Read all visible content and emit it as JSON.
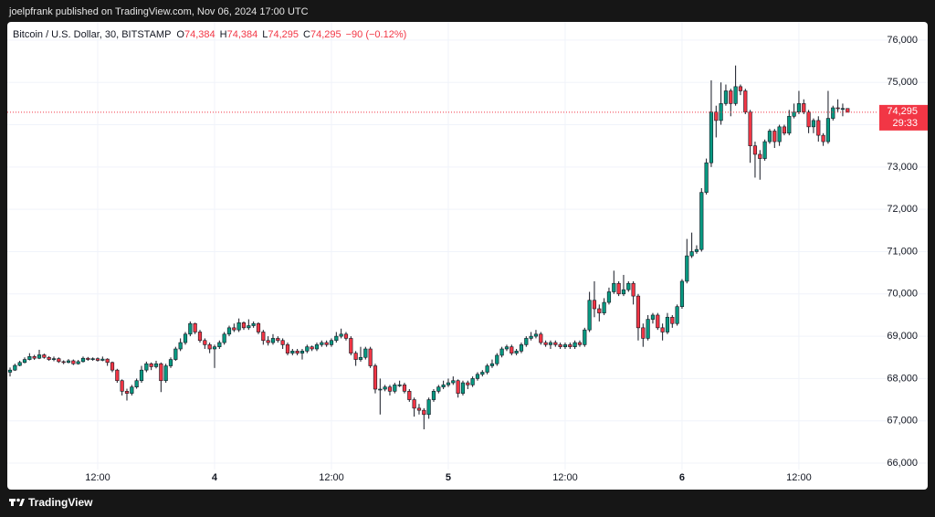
{
  "header": "joelpfrank published on TradingView.com, Nov 06, 2024 17:00 UTC",
  "footer": "TradingView",
  "chart_data": {
    "type": "candlestick",
    "title": "Bitcoin / U.S. Dollar, 30, BITSTAMP",
    "legend": [
      {
        "label": "O",
        "value": "74,384"
      },
      {
        "label": "H",
        "value": "74,384"
      },
      {
        "label": "L",
        "value": "74,295"
      },
      {
        "label": "C",
        "value": "74,295"
      }
    ],
    "change": "−90 (−0.12%)",
    "last_price_label": "74,295",
    "countdown": "29:33",
    "up_color": "#089981",
    "down_color": "#f23645",
    "grid": true,
    "ylim": [
      65850,
      76430
    ],
    "yticks": [
      {
        "value": 66000,
        "label": "66,000"
      },
      {
        "value": 67000,
        "label": "67,000"
      },
      {
        "value": 68000,
        "label": "68,000"
      },
      {
        "value": 69000,
        "label": "69,000"
      },
      {
        "value": 70000,
        "label": "70,000"
      },
      {
        "value": 71000,
        "label": "71,000"
      },
      {
        "value": 72000,
        "label": "72,000"
      },
      {
        "value": 73000,
        "label": "73,000"
      },
      {
        "value": 74000,
        "label": "74,000"
      },
      {
        "value": 75000,
        "label": "75,000"
      },
      {
        "value": 76000,
        "label": "76,000"
      }
    ],
    "categories": [
      null,
      null,
      null,
      null,
      null,
      null,
      null,
      null,
      null,
      null,
      null,
      null,
      null,
      null,
      null,
      null,
      null,
      null,
      "12:00",
      null,
      null,
      null,
      null,
      null,
      null,
      null,
      null,
      null,
      null,
      null,
      null,
      null,
      null,
      null,
      null,
      null,
      null,
      null,
      null,
      null,
      null,
      null,
      "4",
      null,
      null,
      null,
      null,
      null,
      null,
      null,
      null,
      null,
      null,
      null,
      null,
      null,
      null,
      null,
      null,
      null,
      null,
      null,
      null,
      null,
      null,
      null,
      "12:00",
      null,
      null,
      null,
      null,
      null,
      null,
      null,
      null,
      null,
      null,
      null,
      null,
      null,
      null,
      null,
      null,
      null,
      null,
      null,
      null,
      null,
      null,
      null,
      "5",
      null,
      null,
      null,
      null,
      null,
      null,
      null,
      null,
      null,
      null,
      null,
      null,
      null,
      null,
      null,
      null,
      null,
      null,
      null,
      null,
      null,
      null,
      null,
      "12:00",
      null,
      null,
      null,
      null,
      null,
      null,
      null,
      null,
      null,
      null,
      null,
      null,
      null,
      null,
      null,
      null,
      null,
      null,
      null,
      null,
      null,
      null,
      null,
      "6",
      null,
      null,
      null,
      null,
      null,
      null,
      null,
      null,
      null,
      null,
      null,
      null,
      null,
      null,
      null,
      null,
      null,
      null,
      null,
      null,
      null,
      null,
      null,
      "12:00",
      null,
      null,
      null,
      null,
      null,
      null,
      null,
      null,
      null,
      null
    ],
    "open": [
      68150,
      68200,
      68310,
      68380,
      68450,
      68520,
      68480,
      68560,
      68500,
      68450,
      68470,
      68400,
      68380,
      68420,
      68350,
      68400,
      68480,
      68450,
      68470,
      68430,
      68460,
      68380,
      68200,
      67950,
      67700,
      67650,
      67800,
      67950,
      68200,
      68350,
      68280,
      68350,
      67950,
      68300,
      68450,
      68700,
      68850,
      69050,
      69300,
      69100,
      68900,
      68800,
      68700,
      68750,
      68850,
      69050,
      69200,
      69150,
      69320,
      69200,
      69250,
      69300,
      69100,
      68900,
      68850,
      68950,
      68900,
      68800,
      68600,
      68650,
      68600,
      68650,
      68750,
      68700,
      68800,
      68850,
      68800,
      68900,
      69000,
      69050,
      68950,
      68600,
      68450,
      68500,
      68700,
      68300,
      67750,
      67750,
      67800,
      67700,
      67850,
      67850,
      67700,
      67500,
      67300,
      67250,
      67150,
      67500,
      67700,
      67800,
      67850,
      67900,
      67950,
      67650,
      67900,
      67850,
      68000,
      68100,
      68150,
      68300,
      68350,
      68550,
      68700,
      68750,
      68600,
      68650,
      68800,
      68950,
      69000,
      69050,
      68850,
      68800,
      68850,
      68800,
      68750,
      68800,
      68750,
      68850,
      68800,
      69150,
      69850,
      69650,
      69550,
      69800,
      70050,
      70250,
      70000,
      70100,
      70250,
      69950,
      69200,
      68950,
      69400,
      69500,
      69200,
      69100,
      69450,
      69300,
      69700,
      70300,
      70900,
      71000,
      71050,
      72400,
      73100,
      74300,
      74100,
      74500,
      74800,
      74500,
      74900,
      74800,
      74300,
      73500,
      73300,
      73200,
      73600,
      73850,
      73600,
      73950,
      73800,
      74200,
      74300,
      74500,
      74300,
      73950,
      74100,
      73750,
      73600,
      74150,
      74400,
      74380,
      74384
    ],
    "high": [
      68260,
      68350,
      68420,
      68500,
      68600,
      68560,
      68680,
      68590,
      68530,
      68520,
      68500,
      68430,
      68460,
      68450,
      68440,
      68520,
      68510,
      68500,
      68500,
      68520,
      68480,
      68400,
      68230,
      67980,
      67760,
      67850,
      68000,
      68300,
      68400,
      68380,
      68420,
      68380,
      68350,
      68500,
      68750,
      68950,
      69100,
      69350,
      69320,
      69150,
      68950,
      68850,
      68800,
      68900,
      69100,
      69250,
      69300,
      69420,
      69350,
      69400,
      69350,
      69330,
      69150,
      69000,
      69050,
      69000,
      68950,
      68850,
      68700,
      68700,
      68700,
      68800,
      68780,
      68850,
      68900,
      68900,
      68950,
      69100,
      69180,
      69100,
      69000,
      68650,
      68750,
      68750,
      68750,
      68350,
      68000,
      67850,
      67850,
      67900,
      67950,
      67900,
      67750,
      67550,
      67400,
      67300,
      67550,
      67750,
      67850,
      67950,
      68000,
      68050,
      67980,
      67950,
      67950,
      68050,
      68150,
      68200,
      68350,
      68450,
      68600,
      68750,
      68800,
      68800,
      68700,
      68850,
      69000,
      69100,
      69150,
      69100,
      68900,
      68900,
      68900,
      68850,
      68850,
      68850,
      68900,
      68900,
      69200,
      70050,
      70300,
      69750,
      69900,
      70150,
      70550,
      70300,
      70450,
      70300,
      70300,
      70000,
      69300,
      69500,
      69550,
      69550,
      69300,
      69550,
      69500,
      69750,
      70350,
      71300,
      71450,
      71150,
      72500,
      73200,
      75050,
      74450,
      75000,
      74950,
      74850,
      75400,
      74950,
      74850,
      74350,
      73600,
      73400,
      73650,
      73900,
      73900,
      74000,
      74000,
      74350,
      74500,
      74800,
      74600,
      74350,
      74150,
      74200,
      73800,
      74800,
      74450,
      74600,
      74500,
      74384
    ],
    "low": [
      68050,
      68180,
      68290,
      68360,
      68430,
      68440,
      68460,
      68470,
      68420,
      68410,
      68370,
      68340,
      68360,
      68320,
      68330,
      68380,
      68420,
      68420,
      68400,
      68410,
      68300,
      68150,
      67900,
      67600,
      67480,
      67600,
      67760,
      67900,
      68150,
      68200,
      68240,
      67680,
      67900,
      68250,
      68420,
      68650,
      68800,
      69000,
      69050,
      68850,
      68700,
      68600,
      68250,
      68700,
      68800,
      69000,
      69100,
      69100,
      69150,
      69150,
      69200,
      69050,
      68800,
      68780,
      68800,
      68850,
      68700,
      68550,
      68550,
      68550,
      68450,
      68600,
      68650,
      68650,
      68750,
      68750,
      68750,
      68850,
      68950,
      68900,
      68550,
      68300,
      68400,
      68450,
      68250,
      67650,
      67150,
      67700,
      67600,
      67650,
      67800,
      67650,
      67450,
      67100,
      67150,
      66800,
      67050,
      67450,
      67650,
      67750,
      67800,
      67850,
      67550,
      67600,
      67750,
      67800,
      67950,
      68050,
      68100,
      68250,
      68300,
      68500,
      68650,
      68550,
      68550,
      68600,
      68750,
      68900,
      68950,
      68800,
      68750,
      68700,
      68750,
      68700,
      68700,
      68700,
      68700,
      68750,
      68750,
      69100,
      69450,
      69350,
      69500,
      69750,
      70000,
      69950,
      69950,
      70050,
      69750,
      68900,
      68750,
      68900,
      69300,
      69150,
      68900,
      69050,
      69200,
      69250,
      69650,
      70250,
      70850,
      70950,
      71000,
      72350,
      73000,
      73700,
      74000,
      74450,
      74200,
      74450,
      74700,
      74250,
      73100,
      72750,
      72700,
      73150,
      73550,
      73450,
      73500,
      73750,
      73750,
      74150,
      74250,
      74250,
      73800,
      73800,
      73600,
      73500,
      73550,
      74100,
      74300,
      74200,
      74295
    ],
    "close": [
      68200,
      68310,
      68380,
      68450,
      68520,
      68480,
      68560,
      68500,
      68450,
      68470,
      68400,
      68380,
      68420,
      68350,
      68400,
      68480,
      68450,
      68470,
      68430,
      68460,
      68380,
      68200,
      67950,
      67700,
      67650,
      67800,
      67950,
      68200,
      68350,
      68280,
      68350,
      67950,
      68300,
      68450,
      68700,
      68850,
      69050,
      69300,
      69100,
      68900,
      68800,
      68700,
      68750,
      68850,
      69050,
      69200,
      69150,
      69320,
      69200,
      69250,
      69300,
      69100,
      68900,
      68850,
      68950,
      68900,
      68800,
      68600,
      68650,
      68600,
      68650,
      68750,
      68700,
      68800,
      68850,
      68800,
      68900,
      69000,
      69050,
      68950,
      68600,
      68450,
      68500,
      68700,
      68300,
      67750,
      67750,
      67800,
      67700,
      67850,
      67850,
      67700,
      67500,
      67300,
      67250,
      67150,
      67500,
      67700,
      67800,
      67850,
      67900,
      67950,
      67650,
      67900,
      67850,
      68000,
      68100,
      68150,
      68300,
      68350,
      68550,
      68700,
      68750,
      68600,
      68650,
      68800,
      68950,
      69000,
      69050,
      68850,
      68800,
      68850,
      68800,
      68750,
      68800,
      68750,
      68850,
      68800,
      69150,
      69850,
      69650,
      69550,
      69800,
      70050,
      70250,
      70000,
      70100,
      70250,
      69950,
      69200,
      68950,
      69400,
      69500,
      69200,
      69100,
      69450,
      69300,
      69700,
      70300,
      70900,
      71000,
      71050,
      72400,
      73100,
      74300,
      74100,
      74500,
      74800,
      74500,
      74900,
      74800,
      74300,
      73500,
      73300,
      73200,
      73600,
      73850,
      73600,
      73950,
      73800,
      74200,
      74300,
      74500,
      74300,
      73950,
      74100,
      73750,
      73600,
      74150,
      74400,
      74380,
      74384,
      74295
    ]
  }
}
